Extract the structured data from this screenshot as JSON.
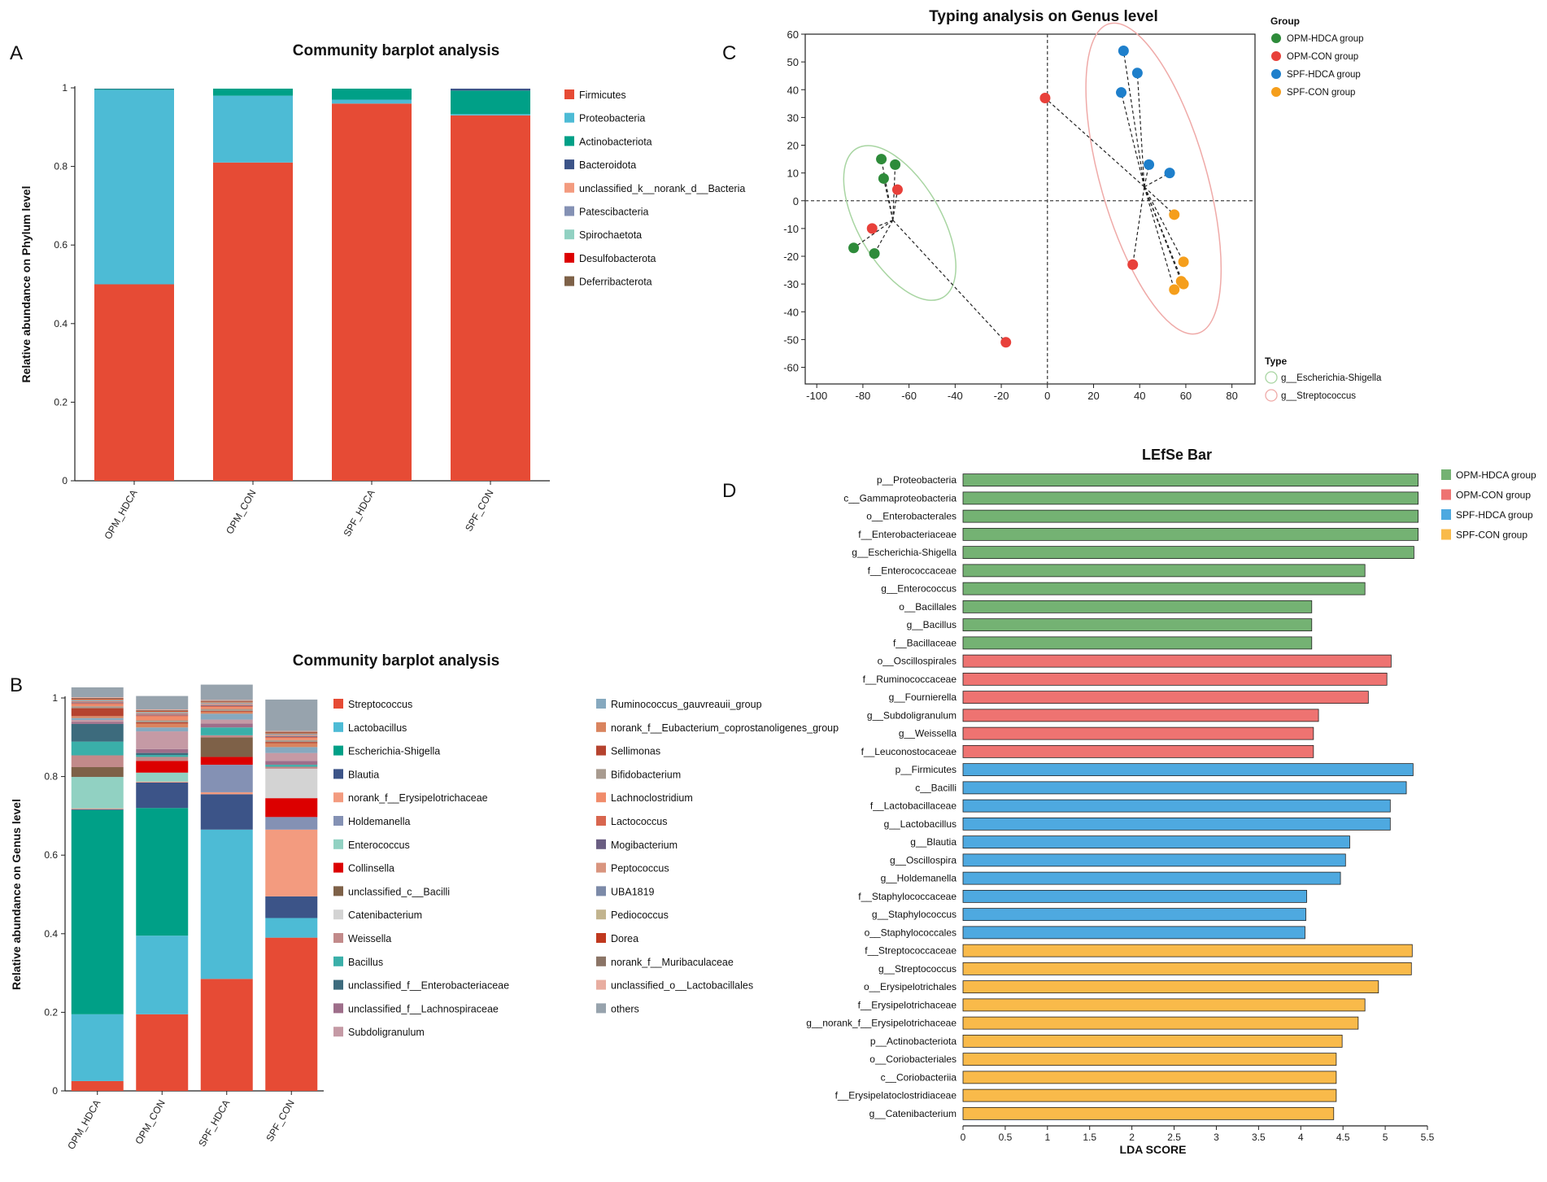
{
  "panels": {
    "a": "A",
    "b": "B",
    "c": "C",
    "d": "D"
  },
  "colors": {
    "axis": "#222222",
    "text": "#111111"
  },
  "chart_data": [
    {
      "id": "A",
      "type": "bar",
      "stacked": true,
      "title": "Community barplot analysis",
      "ylabel": "Relative abundance on Phylum level",
      "xlabel": "",
      "ylim": [
        0,
        1
      ],
      "yticks": [
        "0",
        "0.2",
        "0.4",
        "0.6",
        "0.8",
        "1"
      ],
      "categories": [
        "OPM_HDCA",
        "OPM_CON",
        "SPF_HDCA",
        "SPF_CON"
      ],
      "series": [
        {
          "name": "Firmicutes",
          "color": "#E64B35",
          "values": [
            0.5,
            0.81,
            0.96,
            0.93
          ]
        },
        {
          "name": "Proteobacteria",
          "color": "#4DBBD5",
          "values": [
            0.495,
            0.17,
            0.01,
            0.003
          ]
        },
        {
          "name": "Actinobacteriota",
          "color": "#00A087",
          "values": [
            0.002,
            0.018,
            0.028,
            0.06
          ]
        },
        {
          "name": "Bacteroidota",
          "color": "#3C5488",
          "values": [
            0.001,
            0.0,
            0.0,
            0.005
          ]
        },
        {
          "name": "unclassified_k__norank_d__Bacteria",
          "color": "#F39B7F",
          "values": [
            0,
            0,
            0,
            0
          ]
        },
        {
          "name": "Patescibacteria",
          "color": "#8491B4",
          "values": [
            0,
            0,
            0,
            0
          ]
        },
        {
          "name": "Spirochaetota",
          "color": "#91D1C2",
          "values": [
            0,
            0,
            0,
            0
          ]
        },
        {
          "name": "Desulfobacterota",
          "color": "#DC0000",
          "values": [
            0,
            0,
            0,
            0
          ]
        },
        {
          "name": "Deferribacterota",
          "color": "#7E6148",
          "values": [
            0,
            0,
            0,
            0
          ]
        }
      ]
    },
    {
      "id": "B",
      "type": "bar",
      "stacked": true,
      "title": "Community barplot analysis",
      "ylabel": "Relative abundance on Genus level",
      "xlabel": "",
      "ylim": [
        0,
        1
      ],
      "yticks": [
        "0",
        "0.2",
        "0.4",
        "0.6",
        "0.8",
        "1"
      ],
      "categories": [
        "OPM_HDCA",
        "OPM_CON",
        "SPF_HDCA",
        "SPF_CON"
      ],
      "series": [
        {
          "name": "Streptococcus",
          "color": "#E64B35",
          "values": [
            0.025,
            0.195,
            0.285,
            0.39
          ]
        },
        {
          "name": "Lactobacillus",
          "color": "#4DBBD5",
          "values": [
            0.17,
            0.2,
            0.38,
            0.05
          ]
        },
        {
          "name": "Escherichia-Shigella",
          "color": "#00A087",
          "values": [
            0.52,
            0.325,
            0.0,
            0.0
          ]
        },
        {
          "name": "Blautia",
          "color": "#3C5488",
          "values": [
            0.002,
            0.065,
            0.09,
            0.055
          ]
        },
        {
          "name": "norank_f__Erysipelotrichaceae",
          "color": "#F39B7F",
          "values": [
            0.002,
            0.002,
            0.005,
            0.17
          ]
        },
        {
          "name": "Holdemanella",
          "color": "#8491B4",
          "values": [
            0.0,
            0.0,
            0.07,
            0.032
          ]
        },
        {
          "name": "Enterococcus",
          "color": "#91D1C2",
          "values": [
            0.08,
            0.023,
            0.0,
            0.0
          ]
        },
        {
          "name": "Collinsella",
          "color": "#DC0000",
          "values": [
            0.0,
            0.03,
            0.02,
            0.048
          ]
        },
        {
          "name": "unclassified_c__Bacilli",
          "color": "#7E6148",
          "values": [
            0.025,
            0.0,
            0.05,
            0.0
          ]
        },
        {
          "name": "Catenibacterium",
          "color": "#D3D3D3",
          "values": [
            0.0,
            0.0,
            0.0,
            0.075
          ]
        },
        {
          "name": "Weissella",
          "color": "#C28A8A",
          "values": [
            0.03,
            0.01,
            0.005,
            0.005
          ]
        },
        {
          "name": "Bacillus",
          "color": "#3AAFA9",
          "values": [
            0.035,
            0.005,
            0.02,
            0.005
          ]
        },
        {
          "name": "unclassified_f__Enterobacteriaceae",
          "color": "#3D6B7D",
          "values": [
            0.045,
            0.005,
            0.0,
            0.0
          ]
        },
        {
          "name": "unclassified_f__Lachnospiraceae",
          "color": "#9E6E8A",
          "values": [
            0.005,
            0.01,
            0.01,
            0.01
          ]
        },
        {
          "name": "Subdoligranulum",
          "color": "#C59AA5",
          "values": [
            0.005,
            0.045,
            0.01,
            0.02
          ]
        },
        {
          "name": "Ruminococcus_gauvreauii_group",
          "color": "#86A9BF",
          "values": [
            0.005,
            0.01,
            0.015,
            0.015
          ]
        },
        {
          "name": "norank_f__Eubacterium_coprostanoligenes_group",
          "color": "#D9845F",
          "values": [
            0.005,
            0.01,
            0.005,
            0.01
          ]
        },
        {
          "name": "Sellimonas",
          "color": "#B5432F",
          "values": [
            0.02,
            0.003,
            0.002,
            0.003
          ]
        },
        {
          "name": "Bifidobacterium",
          "color": "#A89B8F",
          "values": [
            0.005,
            0.005,
            0.005,
            0.005
          ]
        },
        {
          "name": "Lachnoclostridium",
          "color": "#F08C6B",
          "values": [
            0.005,
            0.01,
            0.005,
            0.005
          ]
        },
        {
          "name": "Lactococcus",
          "color": "#D8664F",
          "values": [
            0.003,
            0.003,
            0.003,
            0.003
          ]
        },
        {
          "name": "Mogibacterium",
          "color": "#6A5E82",
          "values": [
            0.002,
            0.002,
            0.002,
            0.002
          ]
        },
        {
          "name": "Peptococcus",
          "color": "#D9957F",
          "values": [
            0.003,
            0.003,
            0.003,
            0.003
          ]
        },
        {
          "name": "UBA1819",
          "color": "#7C8AA8",
          "values": [
            0.002,
            0.002,
            0.002,
            0.002
          ]
        },
        {
          "name": "Pediococcus",
          "color": "#C2B48E",
          "values": [
            0.002,
            0.002,
            0.002,
            0.002
          ]
        },
        {
          "name": "Dorea",
          "color": "#C0391F",
          "values": [
            0.002,
            0.002,
            0.002,
            0.002
          ]
        },
        {
          "name": "norank_f__Muribaculaceae",
          "color": "#8B7466",
          "values": [
            0.002,
            0.002,
            0.002,
            0.002
          ]
        },
        {
          "name": "unclassified_o__Lactobacillales",
          "color": "#E8ADA0",
          "values": [
            0.002,
            0.002,
            0.002,
            0.002
          ]
        },
        {
          "name": "others",
          "color": "#97A3AD",
          "values": [
            0.025,
            0.034,
            0.039,
            0.08
          ]
        }
      ]
    },
    {
      "id": "C",
      "type": "scatter",
      "title": "Typing analysis on Genus level",
      "xlabel": "",
      "ylabel": "",
      "xlim": [
        -105,
        90
      ],
      "ylim": [
        -66,
        60
      ],
      "xticks": [
        -100,
        -80,
        -60,
        -40,
        -20,
        0,
        20,
        40,
        60,
        80
      ],
      "yticks": [
        60,
        50,
        40,
        30,
        20,
        10,
        0,
        -10,
        -20,
        -30,
        -40,
        -50,
        -60
      ],
      "legend_group_title": "Group",
      "legend_type_title": "Type",
      "groups": [
        {
          "name": "OPM-HDCA group",
          "color": "#2E8B3A"
        },
        {
          "name": "OPM-CON group",
          "color": "#E8403A"
        },
        {
          "name": "SPF-HDCA group",
          "color": "#1E7FCB"
        },
        {
          "name": "SPF-CON group",
          "color": "#F59E1B"
        }
      ],
      "types": [
        {
          "name": "g__Escherichia-Shigella",
          "color": "#A8D5A2",
          "center": [
            -67,
            -7
          ]
        },
        {
          "name": "g__Streptococcus",
          "color": "#EFAAA8",
          "center": [
            42,
            5
          ]
        }
      ],
      "points": [
        {
          "x": -72,
          "y": 15,
          "group": 0,
          "type": 0
        },
        {
          "x": -66,
          "y": 13,
          "group": 0,
          "type": 0
        },
        {
          "x": -71,
          "y": 8,
          "group": 0,
          "type": 0
        },
        {
          "x": -84,
          "y": -17,
          "group": 0,
          "type": 0
        },
        {
          "x": -75,
          "y": -19,
          "group": 0,
          "type": 0
        },
        {
          "x": -65,
          "y": 4,
          "group": 1,
          "type": 0
        },
        {
          "x": -76,
          "y": -10,
          "group": 1,
          "type": 0
        },
        {
          "x": -18,
          "y": -51,
          "group": 1,
          "type": 0
        },
        {
          "x": -1,
          "y": 37,
          "group": 1,
          "type": 1
        },
        {
          "x": 37,
          "y": -23,
          "group": 1,
          "type": 1
        },
        {
          "x": 33,
          "y": 54,
          "group": 2,
          "type": 1
        },
        {
          "x": 39,
          "y": 46,
          "group": 2,
          "type": 1
        },
        {
          "x": 32,
          "y": 39,
          "group": 2,
          "type": 1
        },
        {
          "x": 44,
          "y": 13,
          "group": 2,
          "type": 1
        },
        {
          "x": 53,
          "y": 10,
          "group": 2,
          "type": 1
        },
        {
          "x": 55,
          "y": -5,
          "group": 3,
          "type": 1
        },
        {
          "x": 59,
          "y": -22,
          "group": 3,
          "type": 1
        },
        {
          "x": 58,
          "y": -29,
          "group": 3,
          "type": 1
        },
        {
          "x": 59,
          "y": -30,
          "group": 3,
          "type": 1
        },
        {
          "x": 55,
          "y": -32,
          "group": 3,
          "type": 1
        }
      ],
      "ellipses": [
        {
          "type": 0,
          "cx": -64,
          "cy": -8,
          "rx": 18,
          "ry": 31,
          "angle_deg": -30
        },
        {
          "type": 1,
          "cx": 46,
          "cy": 8,
          "rx": 23,
          "ry": 58,
          "angle_deg": -16
        }
      ]
    },
    {
      "id": "D",
      "type": "bar",
      "orientation": "horizontal",
      "title": "LEfSe Bar",
      "xlabel": "LDA SCORE",
      "xlim": [
        0,
        5.5
      ],
      "xticks": [
        "0",
        "0.5",
        "1",
        "1.5",
        "2",
        "2.5",
        "3",
        "3.5",
        "4",
        "4.5",
        "5",
        "5.5"
      ],
      "groups": [
        {
          "name": "OPM-HDCA group",
          "color": "#74B273"
        },
        {
          "name": "OPM-CON group",
          "color": "#EE7371"
        },
        {
          "name": "SPF-HDCA group",
          "color": "#4EA9E0"
        },
        {
          "name": "SPF-CON group",
          "color": "#F9BA4A"
        }
      ],
      "categories": [
        "p__Proteobacteria",
        "c__Gammaproteobacteria",
        "o__Enterobacterales",
        "f__Enterobacteriaceae",
        "g__Escherichia-Shigella",
        "f__Enterococcaceae",
        "g__Enterococcus",
        "o__Bacillales",
        "g__Bacillus",
        "f__Bacillaceae",
        "o__Oscillospirales",
        "f__Ruminococcaceae",
        "g__Fournierella",
        "g__Subdoligranulum",
        "g__Weissella",
        "f__Leuconostocaceae",
        "p__Firmicutes",
        "c__Bacilli",
        "f__Lactobacillaceae",
        "g__Lactobacillus",
        "g__Blautia",
        "g__Oscillospira",
        "g__Holdemanella",
        "f__Staphylococcaceae",
        "g__Staphylococcus",
        "o__Staphylococcales",
        "f__Streptococcaceae",
        "g__Streptococcus",
        "o__Erysipelotrichales",
        "f__Erysipelotrichaceae",
        "g__norank_f__Erysipelotrichaceae",
        "p__Actinobacteriota",
        "o__Coriobacteriales",
        "c__Coriobacteriia",
        "f__Erysipelatoclostridiaceae",
        "g__Catenibacterium"
      ],
      "values": [
        5.39,
        5.39,
        5.39,
        5.39,
        5.34,
        4.76,
        4.76,
        4.13,
        4.13,
        4.13,
        5.07,
        5.02,
        4.8,
        4.21,
        4.15,
        4.15,
        5.33,
        5.25,
        5.06,
        5.06,
        4.58,
        4.53,
        4.47,
        4.07,
        4.06,
        4.05,
        5.32,
        5.31,
        4.92,
        4.76,
        4.68,
        4.49,
        4.42,
        4.42,
        4.42,
        4.39
      ],
      "value_groups": [
        0,
        0,
        0,
        0,
        0,
        0,
        0,
        0,
        0,
        0,
        1,
        1,
        1,
        1,
        1,
        1,
        2,
        2,
        2,
        2,
        2,
        2,
        2,
        2,
        2,
        2,
        3,
        3,
        3,
        3,
        3,
        3,
        3,
        3,
        3,
        3
      ]
    }
  ]
}
